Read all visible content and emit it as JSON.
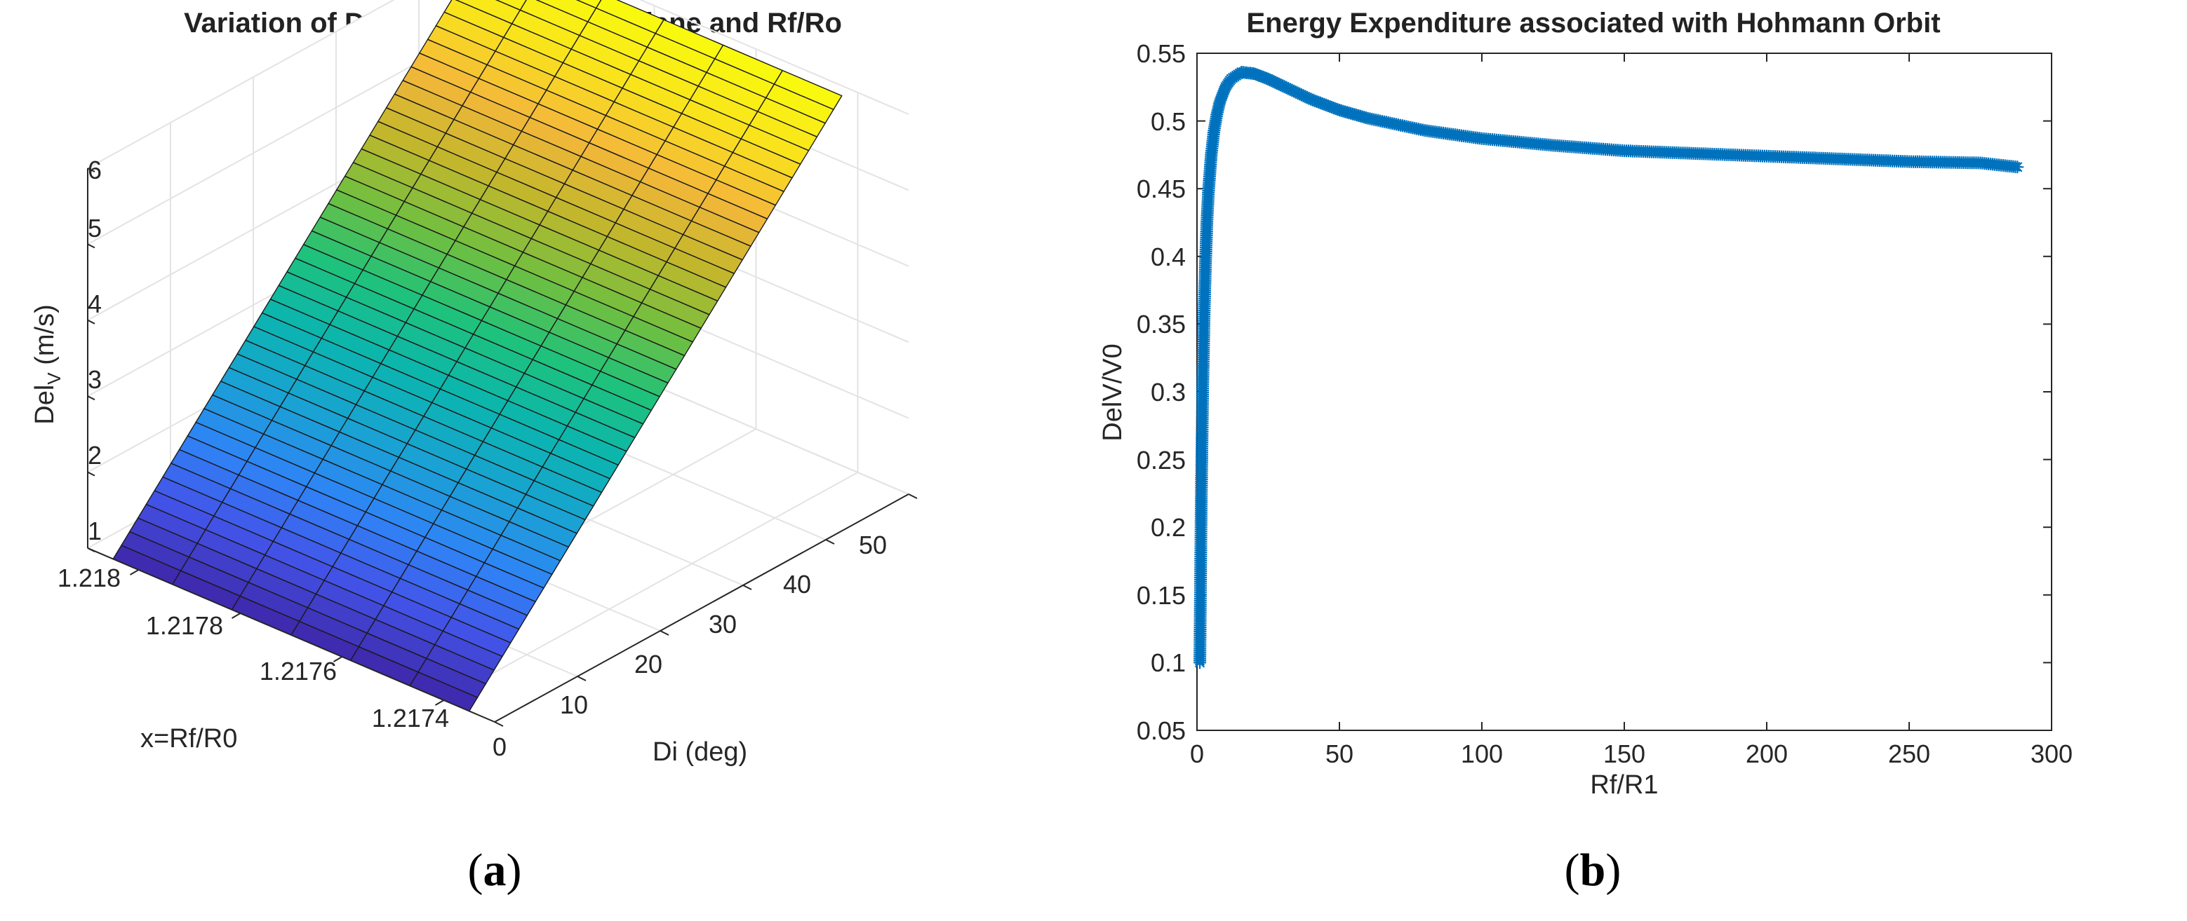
{
  "chart_data": [
    {
      "type": "surface",
      "title": "Variation of Del-V with change of plane and Rf/Ro",
      "zlabel": "Del",
      "zlabel_subscript": "V",
      "zlabel_unit": " (m/s)",
      "xlabel": "x=Rf/R0",
      "ylabel": "Di (deg)",
      "x_ticks": [
        "1.218",
        "1.2178",
        "1.2176",
        "1.2174"
      ],
      "y_ticks": [
        "0",
        "10",
        "20",
        "30",
        "40",
        "50"
      ],
      "z_ticks": [
        "1",
        "2",
        "3",
        "4",
        "5",
        "6"
      ],
      "xlim": [
        1.2173,
        1.2181
      ],
      "ylim": [
        0,
        50
      ],
      "zlim": [
        1,
        6
      ],
      "di_range": [
        0,
        45
      ],
      "delv_range": [
        1.0,
        6.4
      ],
      "colormap": [
        "#3e26a8",
        "#4352e6",
        "#2f84f7",
        "#19a2d3",
        "#0bb5b0",
        "#1ec27c",
        "#71bf3f",
        "#c2b72c",
        "#f4b73a",
        "#f9e41b",
        "#f9fb0e"
      ],
      "grid": true,
      "panel_label": "a"
    },
    {
      "type": "scatter",
      "title": "Energy Expenditure associated with Hohmann Orbit",
      "xlabel": "Rf/R1",
      "ylabel": "DelV/V0",
      "xlim": [
        0,
        300
      ],
      "ylim": [
        0.05,
        0.55
      ],
      "x_ticks": [
        "0",
        "50",
        "100",
        "150",
        "200",
        "250",
        "300"
      ],
      "y_ticks": [
        "0.05",
        "0.1",
        "0.15",
        "0.2",
        "0.25",
        "0.3",
        "0.35",
        "0.4",
        "0.45",
        "0.5",
        "0.55"
      ],
      "marker": "*",
      "color": "#0072bd",
      "x": [
        1,
        1.2,
        1.5,
        2,
        2.5,
        3,
        3.5,
        4,
        5,
        6,
        7,
        8,
        10,
        12,
        15.58,
        20,
        25,
        30,
        40,
        50,
        60,
        80,
        100,
        125,
        150,
        175,
        200,
        225,
        250,
        275,
        288
      ],
      "y": [
        0.1,
        0.149,
        0.22,
        0.301,
        0.357,
        0.396,
        0.426,
        0.447,
        0.475,
        0.493,
        0.505,
        0.514,
        0.525,
        0.531,
        0.536,
        0.535,
        0.531,
        0.526,
        0.516,
        0.508,
        0.502,
        0.493,
        0.487,
        0.482,
        0.478,
        0.476,
        0.474,
        0.472,
        0.47,
        0.469,
        0.466
      ],
      "panel_label": "b"
    }
  ]
}
